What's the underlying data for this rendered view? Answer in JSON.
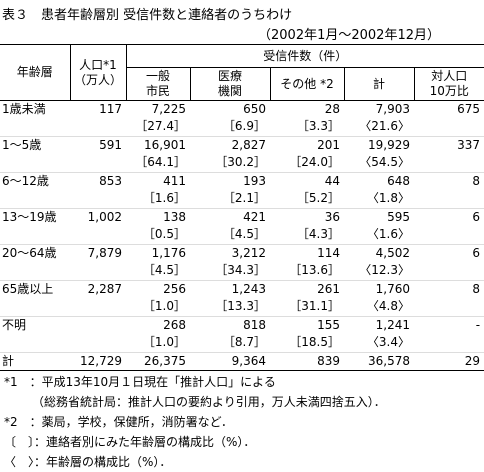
{
  "title": "表３　患者年齢層別 受信件数と連絡者のうちわけ",
  "subtitle": "（2002年1月～2002年12月）",
  "table": {
    "headers": {
      "age": "年齢層",
      "population": [
        "人口*1",
        "（万人）"
      ],
      "calls": "受信件数（件）",
      "general": [
        "一般",
        "市民"
      ],
      "medical": [
        "医療",
        "機関"
      ],
      "other": "その他 *2",
      "total": "計",
      "per_pop": [
        "対人口",
        "10万比"
      ]
    },
    "rows": [
      {
        "cells": [
          "1歳未満",
          "117",
          "7,225",
          "650",
          "28",
          "7,903",
          "675"
        ],
        "ratios": [
          "［27.4］",
          "［6.9］",
          "［3.3］",
          "〈21.6〉"
        ]
      },
      {
        "cells": [
          "1～5歳",
          "591",
          "16,901",
          "2,827",
          "201",
          "19,929",
          "337"
        ],
        "ratios": [
          "［64.1］",
          "［30.2］",
          "［24.0］",
          "〈54.5〉"
        ]
      },
      {
        "cells": [
          "6～12歳",
          "853",
          "411",
          "193",
          "44",
          "648",
          "8"
        ],
        "ratios": [
          "［1.6］",
          "［2.1］",
          "［5.2］",
          "〈1.8〉"
        ]
      },
      {
        "cells": [
          "13～19歳",
          "1,002",
          "138",
          "421",
          "36",
          "595",
          "6"
        ],
        "ratios": [
          "［0.5］",
          "［4.5］",
          "［4.3］",
          "〈1.6〉"
        ]
      },
      {
        "cells": [
          "20～64歳",
          "7,879",
          "1,176",
          "3,212",
          "114",
          "4,502",
          "6"
        ],
        "ratios": [
          "［4.5］",
          "［34.3］",
          "［13.6］",
          "〈12.3〉"
        ]
      },
      {
        "cells": [
          "65歳以上",
          "2,287",
          "256",
          "1,243",
          "261",
          "1,760",
          "8"
        ],
        "ratios": [
          "［1.0］",
          "［13.3］",
          "［31.1］",
          "〈4.8〉"
        ]
      },
      {
        "cells": [
          "不明",
          null,
          "268",
          "818",
          "155",
          "1,241",
          "-"
        ],
        "ratios": [
          "［1.0］",
          "［8.7］",
          "［18.5］",
          "〈3.4〉"
        ]
      }
    ],
    "total_row": [
      "計",
      "12,729",
      "26,375",
      "9,364",
      "839",
      "36,578",
      "29"
    ]
  },
  "notes": [
    "*1　：平成13年10月１日現在「推計人口」による",
    "（総務省統計局：推計人口の要約より引用，万人未満四捨五入）．",
    "*2　：薬局，学校，保健所，消防署など．",
    "〔　〕：連絡者別にみた年齢層の構成比（%）．",
    "〈　〉：年齢層の構成比（%）．"
  ]
}
